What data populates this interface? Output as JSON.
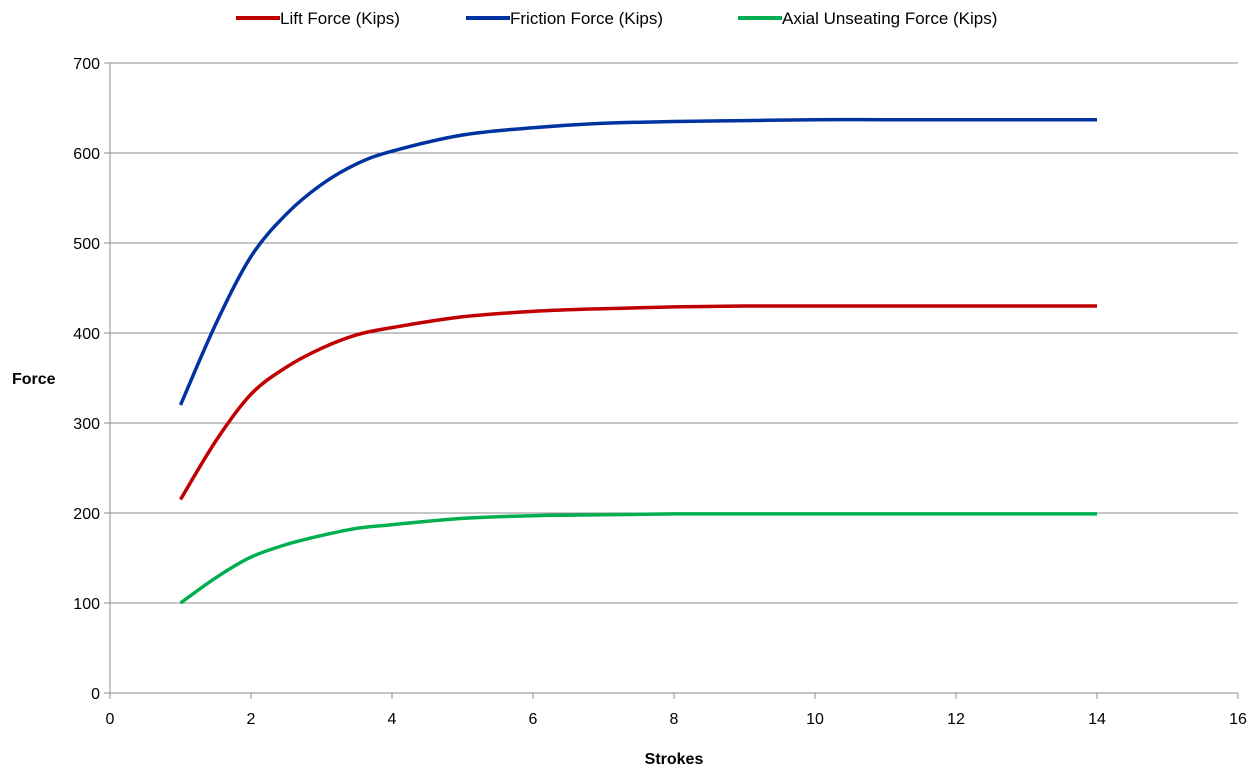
{
  "chart_data": {
    "type": "line",
    "title": "",
    "xlabel": "Strokes",
    "ylabel": "Force",
    "xlim": [
      0,
      16
    ],
    "ylim": [
      0,
      700
    ],
    "xticks": [
      "0",
      "2",
      "4",
      "6",
      "8",
      "10",
      "12",
      "14",
      "16"
    ],
    "yticks": [
      "0",
      "100",
      "200",
      "300",
      "400",
      "500",
      "600",
      "700"
    ],
    "grid": "horizontal",
    "legend_position": "top",
    "series": [
      {
        "name": "Lift Force (Kips)",
        "color": "#c00000",
        "x": [
          1,
          1.5,
          2,
          2.5,
          3,
          3.5,
          4,
          5,
          6,
          7,
          8,
          9,
          10,
          11,
          12,
          13,
          14
        ],
        "y": [
          215,
          280,
          332,
          362,
          383,
          398,
          406,
          418,
          424,
          427,
          429,
          430,
          430,
          430,
          430,
          430,
          430
        ]
      },
      {
        "name": "Friction Force (Kips)",
        "color": "#0033a0",
        "x": [
          1,
          1.5,
          2,
          2.5,
          3,
          3.5,
          4,
          5,
          6,
          7,
          8,
          9,
          10,
          11,
          12,
          13,
          14
        ],
        "y": [
          320,
          410,
          485,
          532,
          565,
          588,
          602,
          620,
          628,
          633,
          635,
          636,
          637,
          637,
          637,
          637,
          637
        ]
      },
      {
        "name": "Axial Unseating Force (Kips)",
        "color": "#00b050",
        "x": [
          1,
          1.5,
          2,
          2.5,
          3,
          3.5,
          4,
          5,
          6,
          7,
          8,
          9,
          10,
          11,
          12,
          13,
          14
        ],
        "y": [
          100,
          128,
          151,
          165,
          175,
          183,
          187,
          194,
          197,
          198,
          199,
          199,
          199,
          199,
          199,
          199,
          199
        ]
      }
    ]
  }
}
